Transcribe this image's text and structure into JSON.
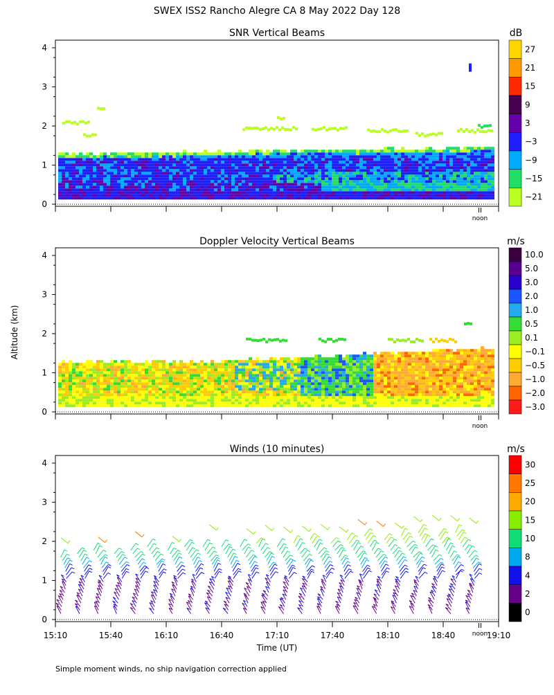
{
  "figure": {
    "main_title": "SWEX ISS2 Rancho Alegre CA   8 May 2022 Day 128",
    "ylabel": "Altitude (km)",
    "xlabel": "Time (UT)",
    "noon_label": "noon",
    "footnote": "Simple moment winds, no ship navigation correction applied",
    "x_tick_labels": [
      "15:10",
      "15:40",
      "16:10",
      "16:40",
      "17:10",
      "17:40",
      "18:10",
      "18:40",
      "19:10"
    ],
    "y_tick_labels": [
      "0",
      "1",
      "2",
      "3",
      "4"
    ]
  },
  "chart_data": [
    {
      "type": "heatmap",
      "title": "SNR Vertical Beams",
      "ylabel": "Altitude (km)",
      "xlim": [
        "15:10",
        "19:10"
      ],
      "ylim": [
        0,
        4
      ],
      "colorbar": {
        "unit": "dB",
        "labels": [
          "27",
          "21",
          "15",
          "9",
          "3",
          "−3",
          "−9",
          "−15",
          "−21"
        ],
        "colors": [
          "#ffd500",
          "#ff9900",
          "#ff2a00",
          "#4a0050",
          "#6600aa",
          "#1e1eff",
          "#00aaff",
          "#22dd66",
          "#bbff22"
        ]
      },
      "layers": [
        {
          "altitude_km": [
            0.15,
            0.45
          ],
          "value_db": "-3 to 9"
        },
        {
          "altitude_km": [
            0.45,
            1.2
          ],
          "value_db": "-9 to 3"
        },
        {
          "altitude_km": [
            1.2,
            1.4
          ],
          "value_db": "-21 to -9"
        }
      ]
    },
    {
      "type": "heatmap",
      "title": "Doppler Velocity Vertical Beams",
      "ylabel": "Altitude (km)",
      "xlim": [
        "15:10",
        "19:10"
      ],
      "ylim": [
        0,
        4
      ],
      "colorbar": {
        "unit": "m/s",
        "labels": [
          "10.0",
          "5.0",
          "3.0",
          "2.0",
          "1.0",
          "0.5",
          "0.1",
          "−0.1",
          "−0.5",
          "−1.0",
          "−2.0",
          "−3.0"
        ],
        "colors": [
          "#3a0040",
          "#5a0090",
          "#2a00cc",
          "#1a55ff",
          "#22aaee",
          "#33dd33",
          "#99ee22",
          "#ffff00",
          "#ffcc00",
          "#ffaa33",
          "#ff6600",
          "#ff1a1a"
        ]
      }
    },
    {
      "type": "wind_barbs",
      "title": "Winds (10 minutes)",
      "ylabel": "Altitude (km)",
      "xlim": [
        "15:10",
        "19:10"
      ],
      "ylim": [
        0,
        4
      ],
      "colorbar": {
        "unit": "m/s",
        "labels": [
          "30",
          "25",
          "20",
          "15",
          "10",
          "8",
          "4",
          "2",
          "0"
        ],
        "colors": [
          "#ff0000",
          "#ff7700",
          "#ffaa00",
          "#88ee00",
          "#11dd77",
          "#00aaee",
          "#1111ee",
          "#660088",
          "#000000"
        ]
      }
    }
  ]
}
